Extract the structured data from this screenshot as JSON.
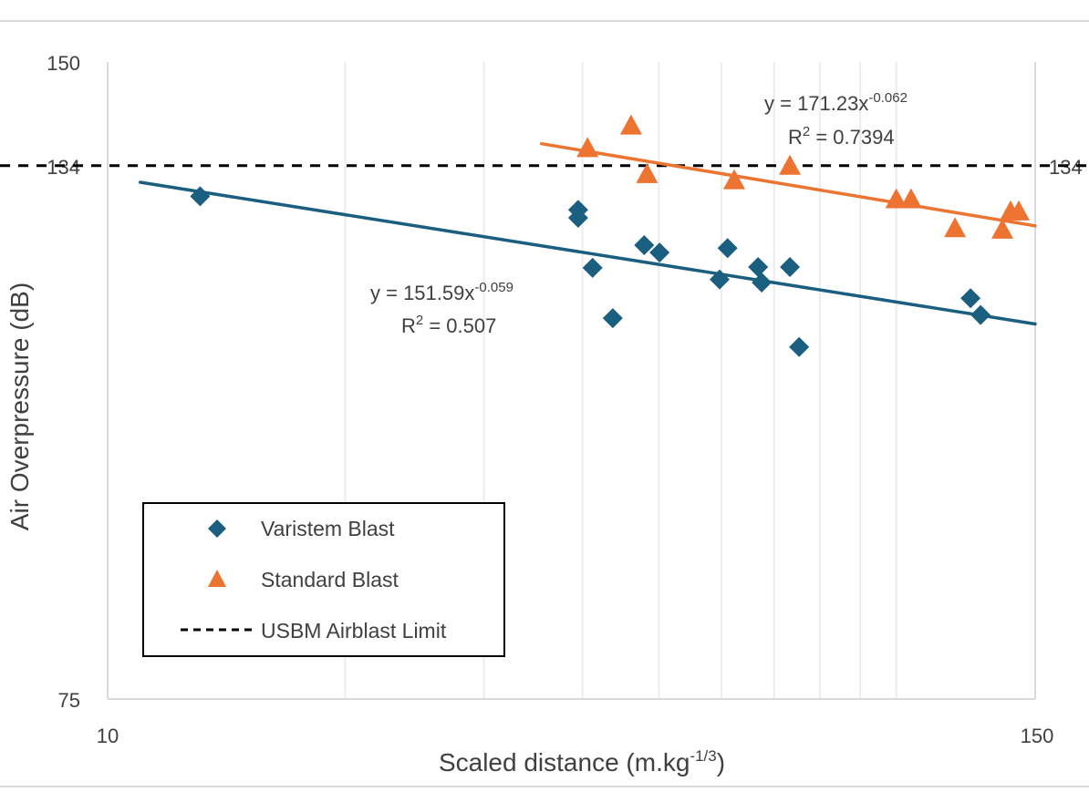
{
  "chart_data": {
    "type": "scatter",
    "xlabel": "Scaled distance (m.kg",
    "xlabel_sup": "-1/3",
    "xlabel_end": ")",
    "ylabel": "Air Overpressure (dB)",
    "x_scale": "log",
    "y_scale": "log",
    "xlim": [
      10,
      150
    ],
    "ylim": [
      75,
      150
    ],
    "x_tick_labels": [
      "10",
      "150"
    ],
    "y_tick_labels": [
      "75",
      "134",
      "150"
    ],
    "right_label": "134",
    "grid": "vertical minor gridlines",
    "legend_position": "bottom-left",
    "colors": {
      "varistem": "#1a5e80",
      "standard": "#ed7331",
      "limit": "#000000"
    },
    "series": [
      {
        "name": "Varistem Blast",
        "marker": "diamond",
        "points": [
          [
            13.1,
            129.6
          ],
          [
            39.5,
            127.7
          ],
          [
            39.5,
            126.6
          ],
          [
            41.2,
            119.9
          ],
          [
            43.7,
            113.5
          ],
          [
            47.9,
            122.9
          ],
          [
            50.1,
            121.9
          ],
          [
            59.7,
            118.4
          ],
          [
            61.1,
            122.5
          ],
          [
            66.8,
            120.0
          ],
          [
            67.5,
            118.0
          ],
          [
            73.3,
            120.0
          ],
          [
            75.3,
            110.0
          ],
          [
            124.2,
            116.0
          ],
          [
            127.9,
            113.9
          ]
        ],
        "trendline": {
          "a": 151.59,
          "b": -0.059,
          "x_range": [
            11.0,
            150
          ],
          "equation": "y = 151.59x",
          "exponent": "-0.059",
          "r2_label": "R",
          "r2_value": " = 0.507"
        }
      },
      {
        "name": "Standard Blast",
        "marker": "triangle",
        "points": [
          [
            40.6,
            136.6
          ],
          [
            46.1,
            140.0
          ],
          [
            48.3,
            132.8
          ],
          [
            62.3,
            131.9
          ],
          [
            73.3,
            134.0
          ],
          [
            100,
            129.2
          ],
          [
            104.4,
            129.2
          ],
          [
            118.7,
            125.2
          ],
          [
            136.3,
            125.0
          ],
          [
            139.6,
            127.5
          ],
          [
            143,
            127.5
          ]
        ],
        "trendline": {
          "a": 171.23,
          "b": -0.062,
          "x_range": [
            35.5,
            150
          ],
          "equation": "y = 171.23x",
          "exponent": "-0.062",
          "r2_label": "R",
          "r2_value": " = 0.7394"
        }
      },
      {
        "name": "USBM Airblast Limit",
        "type": "hline",
        "value": 134
      }
    ]
  }
}
